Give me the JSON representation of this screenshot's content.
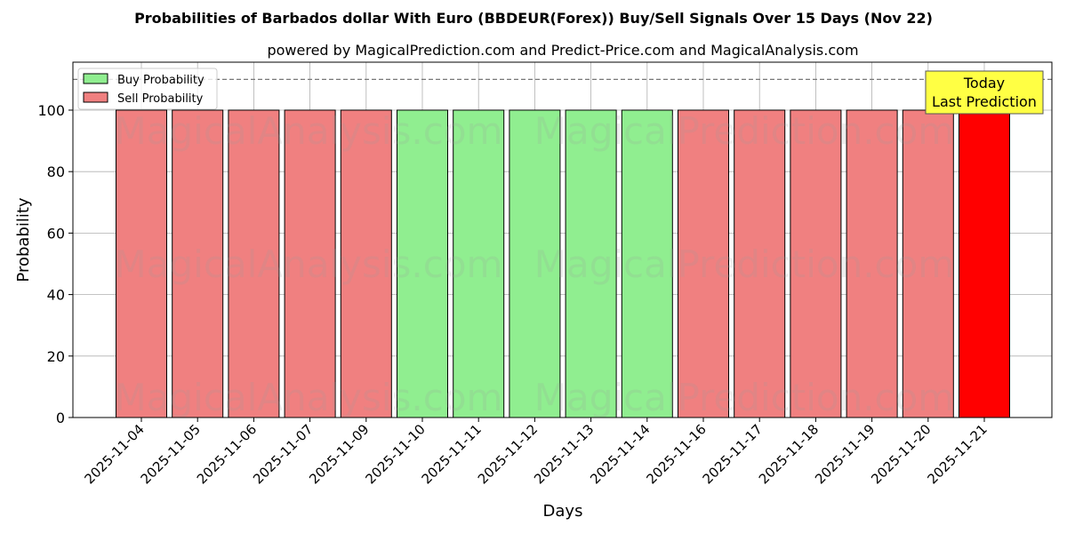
{
  "chart_data": {
    "type": "bar",
    "title": "Probabilities of Barbados dollar With Euro (BBDEUR(Forex)) Buy/Sell Signals Over 15 Days (Nov 22)",
    "subtitle": "powered by MagicalPrediction.com and Predict-Price.com and MagicalAnalysis.com",
    "xlabel": "Days",
    "ylabel": "Probability",
    "ylim": [
      0,
      115.6
    ],
    "yticks": [
      0,
      20,
      40,
      60,
      80,
      100
    ],
    "grid": true,
    "reference_line": 110,
    "categories": [
      "2025-11-04",
      "2025-11-05",
      "2025-11-06",
      "2025-11-07",
      "2025-11-09",
      "2025-11-10",
      "2025-11-11",
      "2025-11-12",
      "2025-11-13",
      "2025-11-14",
      "2025-11-16",
      "2025-11-17",
      "2025-11-18",
      "2025-11-19",
      "2025-11-20",
      "2025-11-21"
    ],
    "values": [
      100,
      100,
      100,
      100,
      100,
      100,
      100,
      100,
      100,
      100,
      100,
      100,
      100,
      100,
      100,
      100
    ],
    "signal": [
      "sell",
      "sell",
      "sell",
      "sell",
      "sell",
      "buy",
      "buy",
      "buy",
      "buy",
      "buy",
      "sell",
      "sell",
      "sell",
      "sell",
      "sell",
      "today"
    ],
    "colors": {
      "buy": "#90ee90",
      "sell": "#f08080",
      "today": "#ff0000",
      "annotation_bg": "#ffff44"
    },
    "legend": {
      "placement": "top-left",
      "entries": [
        {
          "label": "Buy Probability",
          "key": "buy"
        },
        {
          "label": "Sell Probability",
          "key": "sell"
        }
      ]
    },
    "annotation": {
      "line1": "Today",
      "line2": "Last Prediction"
    },
    "watermarks": [
      "MagicalAnalysis.com",
      "MagicalPrediction.com"
    ]
  }
}
